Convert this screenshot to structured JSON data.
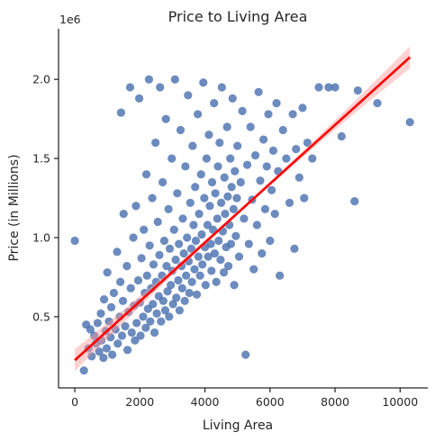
{
  "chart_data": {
    "type": "scatter",
    "title": "Price to Living Area",
    "xlabel": "Living Area",
    "ylabel": "Price (in Millions)",
    "y_offset_text": "1e6",
    "xlim": [
      -500,
      10850
    ],
    "ylim": [
      50000,
      2320000
    ],
    "x_ticks": [
      0,
      2000,
      4000,
      6000,
      8000,
      10000
    ],
    "x_tick_labels": [
      "0",
      "2000",
      "4000",
      "6000",
      "8000",
      "10000"
    ],
    "y_ticks": [
      500000,
      1000000,
      1500000,
      2000000
    ],
    "y_tick_labels": [
      "0.5",
      "1.0",
      "1.5",
      "2.0"
    ],
    "grid": false,
    "colors": {
      "points": "#4C72B0",
      "regression": "#FF0000",
      "ci_band": "#FF9999"
    },
    "regression": {
      "x": [
        0,
        10300
      ],
      "y": [
        225000,
        2140000
      ]
    },
    "points": [
      [
        0,
        980000
      ],
      [
        280,
        160000
      ],
      [
        350,
        450000
      ],
      [
        420,
        300000
      ],
      [
        480,
        420000
      ],
      [
        520,
        250000
      ],
      [
        600,
        380000
      ],
      [
        650,
        330000
      ],
      [
        700,
        460000
      ],
      [
        750,
        280000
      ],
      [
        800,
        520000
      ],
      [
        820,
        350000
      ],
      [
        880,
        240000
      ],
      [
        900,
        610000
      ],
      [
        950,
        410000
      ],
      [
        980,
        300000
      ],
      [
        1000,
        780000
      ],
      [
        1050,
        470000
      ],
      [
        1100,
        370000
      ],
      [
        1120,
        560000
      ],
      [
        1150,
        260000
      ],
      [
        1200,
        650000
      ],
      [
        1250,
        420000
      ],
      [
        1300,
        910000
      ],
      [
        1320,
        330000
      ],
      [
        1380,
        500000
      ],
      [
        1400,
        720000
      ],
      [
        1420,
        1790000
      ],
      [
        1450,
        380000
      ],
      [
        1480,
        600000
      ],
      [
        1500,
        1150000
      ],
      [
        1550,
        440000
      ],
      [
        1600,
        820000
      ],
      [
        1620,
        290000
      ],
      [
        1650,
        530000
      ],
      [
        1700,
        1950000
      ],
      [
        1720,
        680000
      ],
      [
        1750,
        400000
      ],
      [
        1800,
        1000000
      ],
      [
        1820,
        570000
      ],
      [
        1850,
        350000
      ],
      [
        1880,
        1200000
      ],
      [
        1900,
        460000
      ],
      [
        1950,
        730000
      ],
      [
        1980,
        1880000
      ],
      [
        2000,
        590000
      ],
      [
        2020,
        380000
      ],
      [
        2050,
        870000
      ],
      [
        2100,
        500000
      ],
      [
        2120,
        1050000
      ],
      [
        2150,
        650000
      ],
      [
        2180,
        430000
      ],
      [
        2200,
        1400000
      ],
      [
        2220,
        760000
      ],
      [
        2250,
        550000
      ],
      [
        2280,
        2000000
      ],
      [
        2300,
        950000
      ],
      [
        2320,
        470000
      ],
      [
        2350,
        680000
      ],
      [
        2380,
        1250000
      ],
      [
        2400,
        580000
      ],
      [
        2420,
        830000
      ],
      [
        2450,
        400000
      ],
      [
        2480,
        1600000
      ],
      [
        2500,
        720000
      ],
      [
        2520,
        520000
      ],
      [
        2550,
        1100000
      ],
      [
        2580,
        630000
      ],
      [
        2600,
        890000
      ],
      [
        2620,
        1950000
      ],
      [
        2650,
        470000
      ],
      [
        2680,
        760000
      ],
      [
        2700,
        1350000
      ],
      [
        2720,
        600000
      ],
      [
        2750,
        980000
      ],
      [
        2780,
        540000
      ],
      [
        2800,
        1750000
      ],
      [
        2820,
        820000
      ],
      [
        2850,
        660000
      ],
      [
        2880,
        1180000
      ],
      [
        2900,
        500000
      ],
      [
        2920,
        930000
      ],
      [
        2950,
        700000
      ],
      [
        2980,
        1500000
      ],
      [
        3000,
        790000
      ],
      [
        3020,
        580000
      ],
      [
        3050,
        1050000
      ],
      [
        3080,
        2000000
      ],
      [
        3100,
        860000
      ],
      [
        3120,
        620000
      ],
      [
        3150,
        1280000
      ],
      [
        3180,
        730000
      ],
      [
        3200,
        960000
      ],
      [
        3220,
        540000
      ],
      [
        3250,
        1680000
      ],
      [
        3280,
        820000
      ],
      [
        3300,
        680000
      ],
      [
        3320,
        1120000
      ],
      [
        3350,
        900000
      ],
      [
        3380,
        600000
      ],
      [
        3400,
        1450000
      ],
      [
        3420,
        760000
      ],
      [
        3450,
        1000000
      ],
      [
        3480,
        1900000
      ],
      [
        3500,
        850000
      ],
      [
        3520,
        650000
      ],
      [
        3550,
        1220000
      ],
      [
        3580,
        930000
      ],
      [
        3600,
        720000
      ],
      [
        3620,
        1580000
      ],
      [
        3650,
        1080000
      ],
      [
        3680,
        800000
      ],
      [
        3700,
        1320000
      ],
      [
        3720,
        980000
      ],
      [
        3750,
        640000
      ],
      [
        3780,
        1780000
      ],
      [
        3800,
        880000
      ],
      [
        3820,
        1150000
      ],
      [
        3850,
        760000
      ],
      [
        3880,
        1400000
      ],
      [
        3900,
        1020000
      ],
      [
        3920,
        830000
      ],
      [
        3950,
        1980000
      ],
      [
        3980,
        1250000
      ],
      [
        4000,
        940000
      ],
      [
        4020,
        700000
      ],
      [
        4050,
        1500000
      ],
      [
        4080,
        1080000
      ],
      [
        4100,
        880000
      ],
      [
        4120,
        1650000
      ],
      [
        4150,
        1200000
      ],
      [
        4180,
        960000
      ],
      [
        4200,
        790000
      ],
      [
        4220,
        1350000
      ],
      [
        4250,
        1050000
      ],
      [
        4280,
        1850000
      ],
      [
        4300,
        900000
      ],
      [
        4320,
        1280000
      ],
      [
        4350,
        720000
      ],
      [
        4380,
        1120000
      ],
      [
        4400,
        1450000
      ],
      [
        4420,
        980000
      ],
      [
        4450,
        1600000
      ],
      [
        4480,
        860000
      ],
      [
        4500,
        1220000
      ],
      [
        4520,
        1950000
      ],
      [
        4550,
        1040000
      ],
      [
        4580,
        780000
      ],
      [
        4600,
        1380000
      ],
      [
        4620,
        1150000
      ],
      [
        4650,
        940000
      ],
      [
        4680,
        1700000
      ],
      [
        4700,
        1260000
      ],
      [
        4720,
        820000
      ],
      [
        4750,
        1080000
      ],
      [
        4780,
        1500000
      ],
      [
        4800,
        960000
      ],
      [
        4820,
        1320000
      ],
      [
        4850,
        1880000
      ],
      [
        4880,
        1180000
      ],
      [
        4900,
        700000
      ],
      [
        4920,
        1420000
      ],
      [
        4950,
        1010000
      ],
      [
        4980,
        1250000
      ],
      [
        5000,
        1580000
      ],
      [
        5050,
        880000
      ],
      [
        5100,
        1350000
      ],
      [
        5150,
        1800000
      ],
      [
        5200,
        1120000
      ],
      [
        5250,
        260000
      ],
      [
        5300,
        1460000
      ],
      [
        5350,
        960000
      ],
      [
        5400,
        1700000
      ],
      [
        5450,
        1240000
      ],
      [
        5500,
        800000
      ],
      [
        5550,
        1520000
      ],
      [
        5600,
        1080000
      ],
      [
        5650,
        1920000
      ],
      [
        5700,
        1360000
      ],
      [
        5750,
        900000
      ],
      [
        5800,
        1620000
      ],
      [
        5850,
        1180000
      ],
      [
        5900,
        1450000
      ],
      [
        5950,
        1780000
      ],
      [
        6000,
        980000
      ],
      [
        6050,
        1300000
      ],
      [
        6100,
        1550000
      ],
      [
        6150,
        1150000
      ],
      [
        6200,
        1850000
      ],
      [
        6250,
        1420000
      ],
      [
        6300,
        760000
      ],
      [
        6400,
        1680000
      ],
      [
        6500,
        1500000
      ],
      [
        6600,
        1220000
      ],
      [
        6700,
        1780000
      ],
      [
        6750,
        930000
      ],
      [
        6800,
        1560000
      ],
      [
        6900,
        1380000
      ],
      [
        7000,
        1820000
      ],
      [
        7050,
        1250000
      ],
      [
        7150,
        1600000
      ],
      [
        7300,
        1500000
      ],
      [
        7500,
        1950000
      ],
      [
        7800,
        1950000
      ],
      [
        8000,
        1950000
      ],
      [
        8200,
        1640000
      ],
      [
        8600,
        1230000
      ],
      [
        8700,
        1930000
      ],
      [
        9300,
        1850000
      ],
      [
        10300,
        1730000
      ]
    ]
  }
}
